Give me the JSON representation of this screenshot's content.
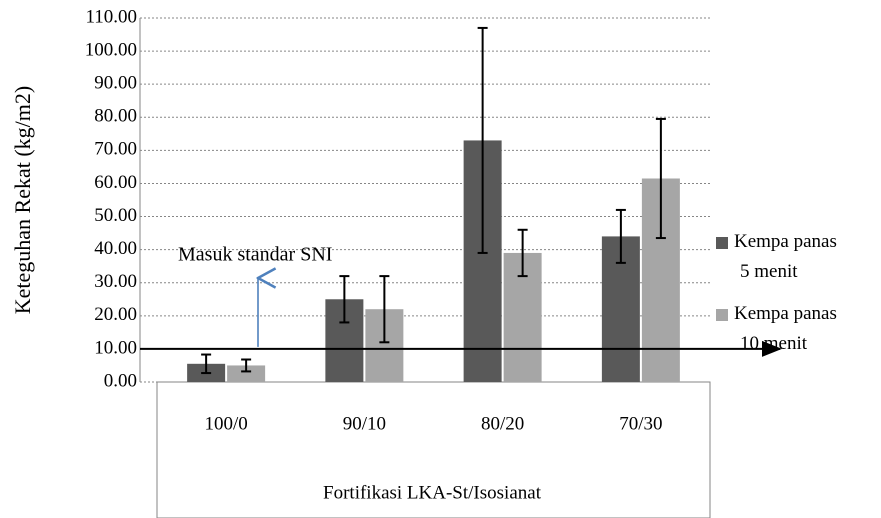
{
  "chart_data": {
    "type": "bar",
    "y_label": "Keteguhan Rekat (kg/m2)",
    "x_label": "Fortifikasi LKA-St/Isosianat",
    "annotation": "Masuk standar SNI",
    "threshold": 10,
    "categories": [
      "100/0",
      "90/10",
      "80/20",
      "70/30"
    ],
    "series": [
      {
        "name": "Kempa panas 5 menit",
        "color": "#595959",
        "values": [
          5.5,
          25,
          73,
          44
        ],
        "errors": [
          2.8,
          7,
          34,
          8
        ]
      },
      {
        "name": "Kempa panas 10 menit",
        "color": "#a6a6a6",
        "values": [
          5,
          22,
          39,
          61.5
        ],
        "errors": [
          1.8,
          10,
          7,
          18
        ]
      }
    ],
    "ylim": [
      0,
      110
    ],
    "yticks": [
      {
        "value": 0,
        "label": "0.00"
      },
      {
        "value": 10,
        "label": "10.00"
      },
      {
        "value": 20,
        "label": "20.00"
      },
      {
        "value": 30,
        "label": "30.00"
      },
      {
        "value": 40,
        "label": "40.00"
      },
      {
        "value": 50,
        "label": "50.00"
      },
      {
        "value": 60,
        "label": "60.00"
      },
      {
        "value": 70,
        "label": "70.00"
      },
      {
        "value": 80,
        "label": "80.00"
      },
      {
        "value": 90,
        "label": "90.00"
      },
      {
        "value": 100,
        "label": "100.00"
      },
      {
        "value": 110,
        "label": "110.00"
      }
    ],
    "grid": true
  }
}
